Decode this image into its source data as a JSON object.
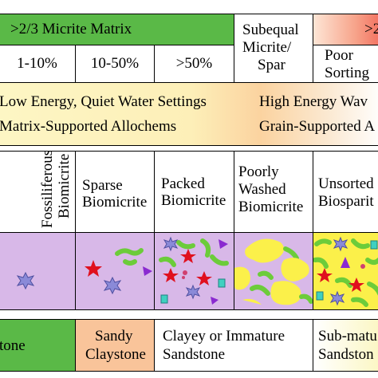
{
  "header": {
    "micrite_matrix": ">2/3 Micrite Matrix",
    "subequal": [
      "Subequal",
      "Micrite/",
      "Spar"
    ],
    "right_cut": ">2",
    "allochem_percents": [
      "1-10%",
      "10-50%",
      ">50%"
    ],
    "poor_sorting": [
      "Poor",
      "Sorting"
    ]
  },
  "energy": {
    "left_top": "Low Energy, Quiet Water Settings",
    "left_bottom": "Matrix-Supported Allochems",
    "right_top": "High Energy Wav",
    "right_bottom": "Grain-Supported A"
  },
  "rock_names": {
    "fossiliferous": [
      "Fossiliferous",
      "Biomicrite"
    ],
    "sparse": [
      "Sparse",
      "Biomicrite"
    ],
    "packed": [
      "Packed",
      "Biomicrite"
    ],
    "poorly_washed": [
      "Poorly",
      "Washed",
      "Biomicrite"
    ],
    "unsorted": [
      "Unsorted",
      "Biosparit"
    ]
  },
  "terrigenous": {
    "claystone": "tone",
    "sandy_claystone": [
      "Sandy",
      "Claystone"
    ],
    "clayey": [
      "Clayey or Immature",
      "Sandstone"
    ],
    "submature": [
      "Sub-matu",
      "Sandston"
    ]
  },
  "colors": {
    "green": "#5ab947",
    "matrix_purple": "#d8b8e8",
    "sparite_yellow": "#fbf04a",
    "orange": "#f9c49a",
    "red_cut": "#f26b5b"
  }
}
